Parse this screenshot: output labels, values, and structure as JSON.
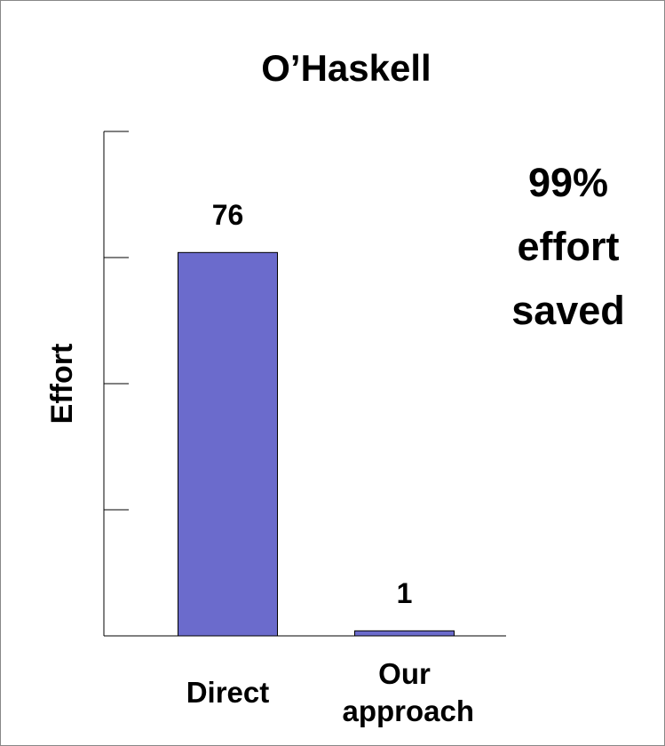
{
  "chart_data": {
    "type": "bar",
    "title": "O’Haskell",
    "y_label": "Effort",
    "categories": [
      "Direct",
      "Our approach"
    ],
    "values": [
      76,
      1
    ],
    "color": "#6b6bcc",
    "ylim": [
      0,
      100
    ],
    "yticks": [
      0,
      25,
      50,
      75,
      100
    ],
    "annotation": "99% effort saved"
  }
}
